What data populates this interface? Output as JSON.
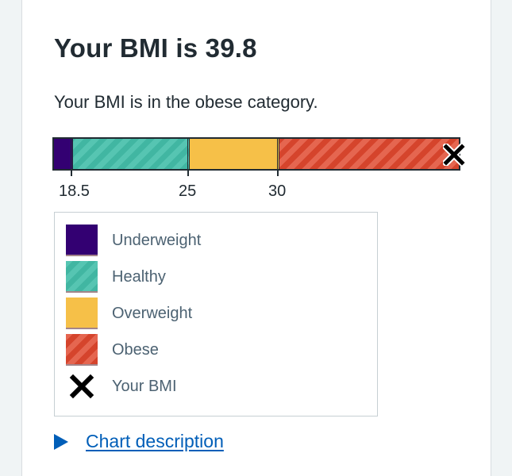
{
  "title": "Your BMI is 39.8",
  "result_text": "Your BMI is in the obese category.",
  "chart_data": {
    "type": "bar",
    "categories": [
      "Underweight",
      "Healthy",
      "Overweight",
      "Obese"
    ],
    "boundaries": [
      18.5,
      25,
      30
    ],
    "tick_labels": [
      "18.5",
      "25",
      "30"
    ],
    "user_bmi": 39.8,
    "colors": {
      "Underweight": "#330072",
      "Healthy": "#41b6a2",
      "Overweight": "#f6c048",
      "Obese": "#d5442c"
    }
  },
  "legend": {
    "items": [
      {
        "label": "Underweight",
        "color": "#330072"
      },
      {
        "label": "Healthy",
        "color": "#41b6a2"
      },
      {
        "label": "Overweight",
        "color": "#f6c048"
      },
      {
        "label": "Obese",
        "color": "#d5442c"
      }
    ],
    "your_bmi_label": "Your BMI",
    "your_bmi_icon": "cross-icon"
  },
  "details": {
    "label": "Chart description",
    "icon": "triangle-right-icon"
  }
}
